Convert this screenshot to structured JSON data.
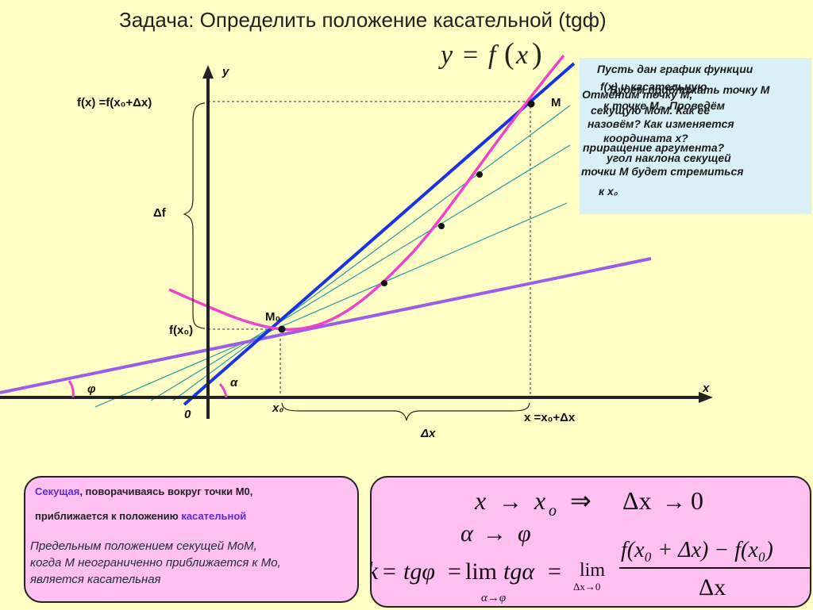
{
  "title": "Задача: Определить положение касательной (tgф)",
  "header_formula": {
    "y": "y",
    "eq": "=",
    "f": "f",
    "lp": "(",
    "x": "x",
    "rp": ")"
  },
  "axes": {
    "y_label": "y",
    "x_label": "x",
    "origin_label": "0"
  },
  "labels": {
    "f_x": "f(x) =f(x₀+Δx)",
    "M": "M",
    "M0": "M₀",
    "f_x0": "f(x₀)",
    "delta_f": "Δf",
    "x0": "x₀",
    "x_plus": "x =x₀+Δx",
    "delta_x": "Δx",
    "phi": "φ",
    "alpha": "α"
  },
  "info_lines": [
    "Пусть дан график функции",
    "f(x) и касательную",
    "Отметим точку М,",
    "Будем приближать точку М",
    "к точке М₀. Проведём",
    "секущую МоМ. Как её",
    "назовём? Как изменяется",
    "координата х?",
    "приращение аргумента?",
    "угол наклона секущей",
    "точки М будет стремиться",
    "к х₀"
  ],
  "notes_left": {
    "secant": "Секущая",
    "line1_rest": ", поворачиваясь вокруг точки М0,",
    "line2_pre": "приближается к положению ",
    "tangent": "касательной",
    "paragraph": [
      "Предельным положением секущей МоМ,",
      "когда М неограниченно приближается к Мо,",
      "является касательная"
    ]
  },
  "formulas": {
    "row1": {
      "x": "x",
      "to": "→",
      "xo": "x",
      "sub_o": "o",
      "implies": "⇒",
      "dx": "Δx",
      "to2": "→",
      "zero": "0"
    },
    "row2": {
      "alpha": "α",
      "to": "→",
      "phi": "φ"
    },
    "row3": {
      "k": "k",
      "eq1": "=",
      "tg_phi": "tgφ",
      "eq2": "=",
      "lim": "lim",
      "tg_alpha": "tgα",
      "eq3": "=",
      "lim_sub": "α→φ",
      "lim2": "lim",
      "lim2_sub": "Δx→0",
      "numerator": "f(x₀ + Δx) − f(x₀)",
      "denominator": "Δx"
    }
  },
  "colors": {
    "background": "#fefec5",
    "curve": "#ee44cc",
    "tangent": "#1a32e6",
    "secant_lines": "#2a9aa8",
    "limit_line": "#9b5de8",
    "info_box": "#d9f0f6",
    "note_box": "#fdc0f0",
    "keyword": "#5b2bd6"
  }
}
